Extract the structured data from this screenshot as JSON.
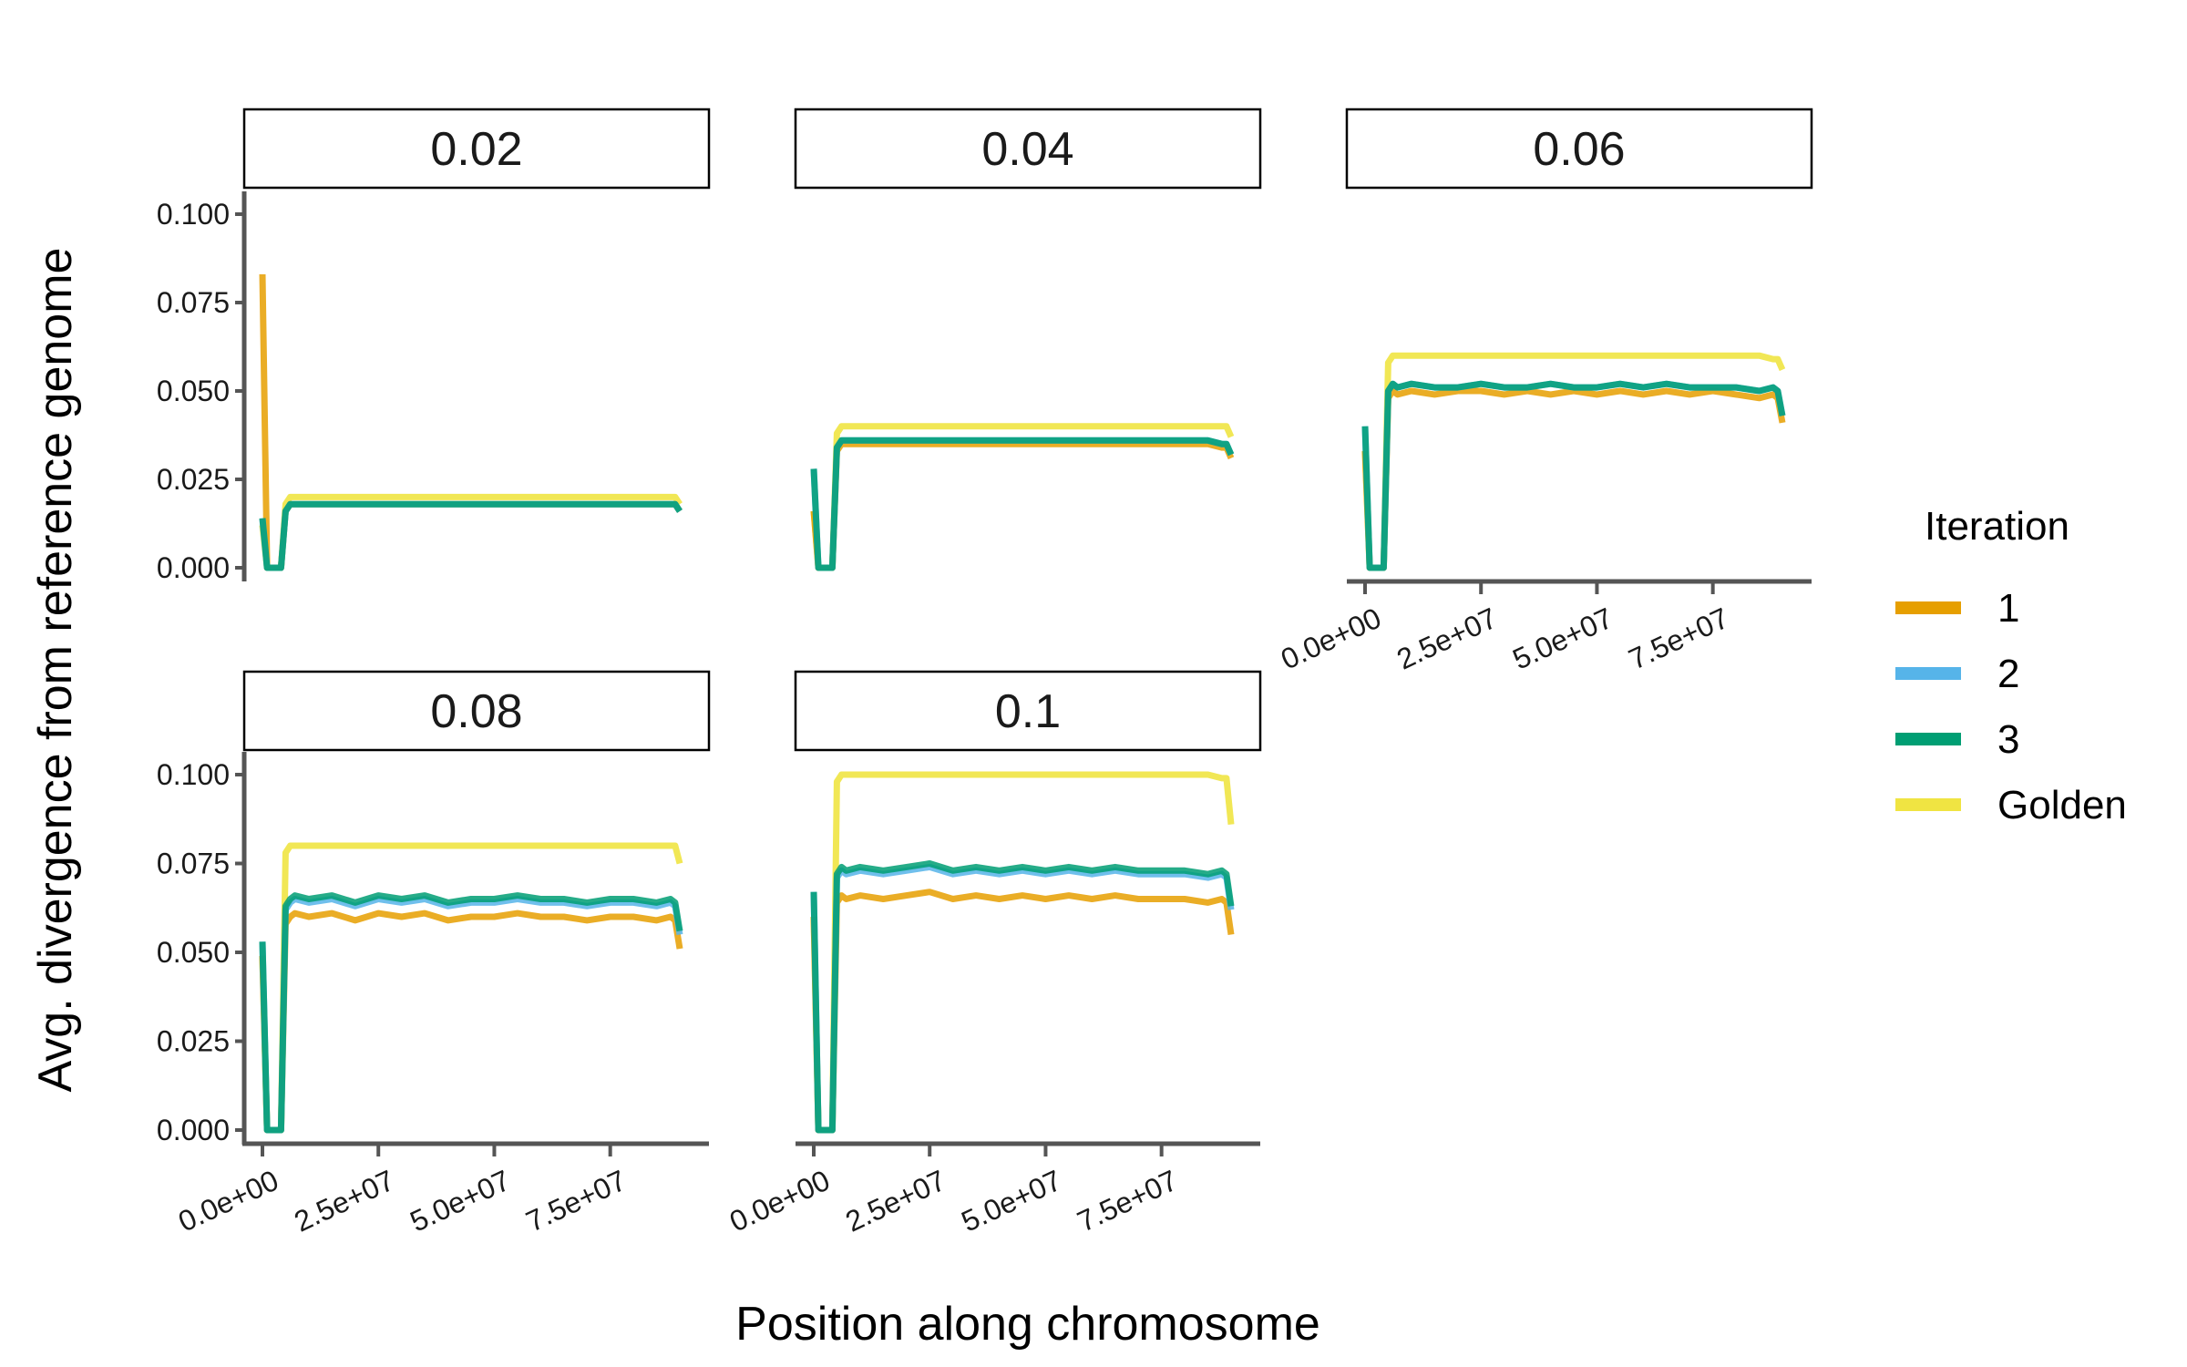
{
  "chart_data": {
    "type": "line",
    "facet_by": "divergence",
    "xlabel": "Position along chromosome",
    "ylabel": "Avg. divergence from reference genome",
    "ylim": [
      0,
      0.1
    ],
    "xlim": [
      0,
      90000000
    ],
    "x_ticks": [
      "0.0e+00",
      "2.5e+07",
      "5.0e+07",
      "7.5e+07"
    ],
    "x_tick_values": [
      0,
      25000000,
      50000000,
      75000000
    ],
    "y_ticks": [
      "0.000",
      "0.025",
      "0.050",
      "0.075",
      "0.100"
    ],
    "y_tick_values": [
      0,
      0.025,
      0.05,
      0.075,
      0.1
    ],
    "grid": false,
    "legend": {
      "title": "Iteration",
      "position": "right",
      "entries": [
        {
          "label": "1",
          "color": "#E69F00"
        },
        {
          "label": "2",
          "color": "#56B4E9"
        },
        {
          "label": "3",
          "color": "#009E73"
        },
        {
          "label": "Golden",
          "color": "#F0E442"
        }
      ]
    },
    "x": [
      0,
      1000000,
      2000000,
      3000000,
      4000000,
      5000000,
      6000000,
      7000000,
      10000000,
      15000000,
      20000000,
      25000000,
      30000000,
      35000000,
      40000000,
      45000000,
      50000000,
      55000000,
      60000000,
      65000000,
      70000000,
      75000000,
      80000000,
      85000000,
      88000000,
      89000000,
      90000000
    ],
    "panels": [
      {
        "label": "0.02",
        "series": [
          {
            "name": "1",
            "values": [
              0.083,
              0.0,
              0.0,
              0.0,
              0.0,
              0.016,
              0.018,
              0.018,
              0.018,
              0.018,
              0.018,
              0.018,
              0.018,
              0.018,
              0.018,
              0.018,
              0.018,
              0.018,
              0.018,
              0.018,
              0.018,
              0.018,
              0.018,
              0.018,
              0.018,
              0.018,
              0.016
            ]
          },
          {
            "name": "2",
            "values": [
              0.014,
              0.0,
              0.0,
              0.0,
              0.0,
              0.016,
              0.018,
              0.018,
              0.018,
              0.018,
              0.018,
              0.018,
              0.018,
              0.018,
              0.018,
              0.018,
              0.018,
              0.018,
              0.018,
              0.018,
              0.018,
              0.018,
              0.018,
              0.018,
              0.018,
              0.018,
              0.016
            ]
          },
          {
            "name": "3",
            "values": [
              0.014,
              0.0,
              0.0,
              0.0,
              0.0,
              0.016,
              0.018,
              0.018,
              0.018,
              0.018,
              0.018,
              0.018,
              0.018,
              0.018,
              0.018,
              0.018,
              0.018,
              0.018,
              0.018,
              0.018,
              0.018,
              0.018,
              0.018,
              0.018,
              0.018,
              0.018,
              0.016
            ]
          },
          {
            "name": "Golden",
            "values": [
              0.012,
              0.0,
              0.0,
              0.0,
              0.0,
              0.018,
              0.02,
              0.02,
              0.02,
              0.02,
              0.02,
              0.02,
              0.02,
              0.02,
              0.02,
              0.02,
              0.02,
              0.02,
              0.02,
              0.02,
              0.02,
              0.02,
              0.02,
              0.02,
              0.02,
              0.02,
              0.018
            ]
          }
        ]
      },
      {
        "label": "0.04",
        "series": [
          {
            "name": "1",
            "values": [
              0.016,
              0.0,
              0.0,
              0.0,
              0.0,
              0.033,
              0.035,
              0.035,
              0.035,
              0.035,
              0.035,
              0.035,
              0.035,
              0.035,
              0.035,
              0.035,
              0.035,
              0.035,
              0.035,
              0.035,
              0.035,
              0.035,
              0.035,
              0.035,
              0.034,
              0.034,
              0.031
            ]
          },
          {
            "name": "2",
            "values": [
              0.028,
              0.0,
              0.0,
              0.0,
              0.0,
              0.034,
              0.036,
              0.036,
              0.036,
              0.036,
              0.036,
              0.036,
              0.036,
              0.036,
              0.036,
              0.036,
              0.036,
              0.036,
              0.036,
              0.036,
              0.036,
              0.036,
              0.036,
              0.036,
              0.035,
              0.035,
              0.032
            ]
          },
          {
            "name": "3",
            "values": [
              0.028,
              0.0,
              0.0,
              0.0,
              0.0,
              0.034,
              0.036,
              0.036,
              0.036,
              0.036,
              0.036,
              0.036,
              0.036,
              0.036,
              0.036,
              0.036,
              0.036,
              0.036,
              0.036,
              0.036,
              0.036,
              0.036,
              0.036,
              0.036,
              0.035,
              0.035,
              0.032
            ]
          },
          {
            "name": "Golden",
            "values": [
              0.016,
              0.0,
              0.0,
              0.0,
              0.0,
              0.038,
              0.04,
              0.04,
              0.04,
              0.04,
              0.04,
              0.04,
              0.04,
              0.04,
              0.04,
              0.04,
              0.04,
              0.04,
              0.04,
              0.04,
              0.04,
              0.04,
              0.04,
              0.04,
              0.04,
              0.04,
              0.037
            ]
          }
        ]
      },
      {
        "label": "0.06",
        "series": [
          {
            "name": "1",
            "values": [
              0.033,
              0.0,
              0.0,
              0.0,
              0.0,
              0.048,
              0.05,
              0.049,
              0.05,
              0.049,
              0.05,
              0.05,
              0.049,
              0.05,
              0.049,
              0.05,
              0.049,
              0.05,
              0.049,
              0.05,
              0.049,
              0.05,
              0.049,
              0.048,
              0.049,
              0.048,
              0.041
            ]
          },
          {
            "name": "2",
            "values": [
              0.04,
              0.0,
              0.0,
              0.0,
              0.0,
              0.05,
              0.052,
              0.051,
              0.052,
              0.051,
              0.051,
              0.052,
              0.051,
              0.051,
              0.052,
              0.051,
              0.051,
              0.052,
              0.051,
              0.052,
              0.051,
              0.051,
              0.051,
              0.05,
              0.051,
              0.05,
              0.043
            ]
          },
          {
            "name": "3",
            "values": [
              0.04,
              0.0,
              0.0,
              0.0,
              0.0,
              0.05,
              0.052,
              0.051,
              0.052,
              0.051,
              0.051,
              0.052,
              0.051,
              0.051,
              0.052,
              0.051,
              0.051,
              0.052,
              0.051,
              0.052,
              0.051,
              0.051,
              0.051,
              0.05,
              0.051,
              0.05,
              0.043
            ]
          },
          {
            "name": "Golden",
            "values": [
              0.033,
              0.0,
              0.0,
              0.0,
              0.0,
              0.058,
              0.06,
              0.06,
              0.06,
              0.06,
              0.06,
              0.06,
              0.06,
              0.06,
              0.06,
              0.06,
              0.06,
              0.06,
              0.06,
              0.06,
              0.06,
              0.06,
              0.06,
              0.06,
              0.059,
              0.059,
              0.056
            ]
          }
        ]
      },
      {
        "label": "0.08",
        "series": [
          {
            "name": "1",
            "values": [
              0.049,
              0.0,
              0.0,
              0.0,
              0.0,
              0.058,
              0.06,
              0.061,
              0.06,
              0.061,
              0.059,
              0.061,
              0.06,
              0.061,
              0.059,
              0.06,
              0.06,
              0.061,
              0.06,
              0.06,
              0.059,
              0.06,
              0.06,
              0.059,
              0.06,
              0.059,
              0.051
            ]
          },
          {
            "name": "2",
            "values": [
              0.053,
              0.0,
              0.0,
              0.0,
              0.0,
              0.062,
              0.064,
              0.065,
              0.064,
              0.065,
              0.063,
              0.065,
              0.064,
              0.065,
              0.063,
              0.064,
              0.064,
              0.065,
              0.064,
              0.064,
              0.063,
              0.064,
              0.064,
              0.063,
              0.064,
              0.063,
              0.055
            ]
          },
          {
            "name": "3",
            "values": [
              0.053,
              0.0,
              0.0,
              0.0,
              0.0,
              0.063,
              0.065,
              0.066,
              0.065,
              0.066,
              0.064,
              0.066,
              0.065,
              0.066,
              0.064,
              0.065,
              0.065,
              0.066,
              0.065,
              0.065,
              0.064,
              0.065,
              0.065,
              0.064,
              0.065,
              0.064,
              0.056
            ]
          },
          {
            "name": "Golden",
            "values": [
              0.049,
              0.0,
              0.0,
              0.0,
              0.0,
              0.078,
              0.08,
              0.08,
              0.08,
              0.08,
              0.08,
              0.08,
              0.08,
              0.08,
              0.08,
              0.08,
              0.08,
              0.08,
              0.08,
              0.08,
              0.08,
              0.08,
              0.08,
              0.08,
              0.08,
              0.08,
              0.075
            ]
          }
        ]
      },
      {
        "label": "0.1",
        "series": [
          {
            "name": "1",
            "values": [
              0.06,
              0.0,
              0.0,
              0.0,
              0.0,
              0.064,
              0.066,
              0.065,
              0.066,
              0.065,
              0.066,
              0.067,
              0.065,
              0.066,
              0.065,
              0.066,
              0.065,
              0.066,
              0.065,
              0.066,
              0.065,
              0.065,
              0.065,
              0.064,
              0.065,
              0.064,
              0.055
            ]
          },
          {
            "name": "2",
            "values": [
              0.067,
              0.0,
              0.0,
              0.0,
              0.0,
              0.071,
              0.073,
              0.072,
              0.073,
              0.072,
              0.073,
              0.074,
              0.072,
              0.073,
              0.072,
              0.073,
              0.072,
              0.073,
              0.072,
              0.073,
              0.072,
              0.072,
              0.072,
              0.071,
              0.072,
              0.071,
              0.062
            ]
          },
          {
            "name": "3",
            "values": [
              0.067,
              0.0,
              0.0,
              0.0,
              0.0,
              0.072,
              0.074,
              0.073,
              0.074,
              0.073,
              0.074,
              0.075,
              0.073,
              0.074,
              0.073,
              0.074,
              0.073,
              0.074,
              0.073,
              0.074,
              0.073,
              0.073,
              0.073,
              0.072,
              0.073,
              0.072,
              0.063
            ]
          },
          {
            "name": "Golden",
            "values": [
              0.06,
              0.0,
              0.0,
              0.0,
              0.0,
              0.098,
              0.1,
              0.1,
              0.1,
              0.1,
              0.1,
              0.1,
              0.1,
              0.1,
              0.1,
              0.1,
              0.1,
              0.1,
              0.1,
              0.1,
              0.1,
              0.1,
              0.1,
              0.1,
              0.099,
              0.099,
              0.086
            ]
          }
        ]
      }
    ]
  }
}
